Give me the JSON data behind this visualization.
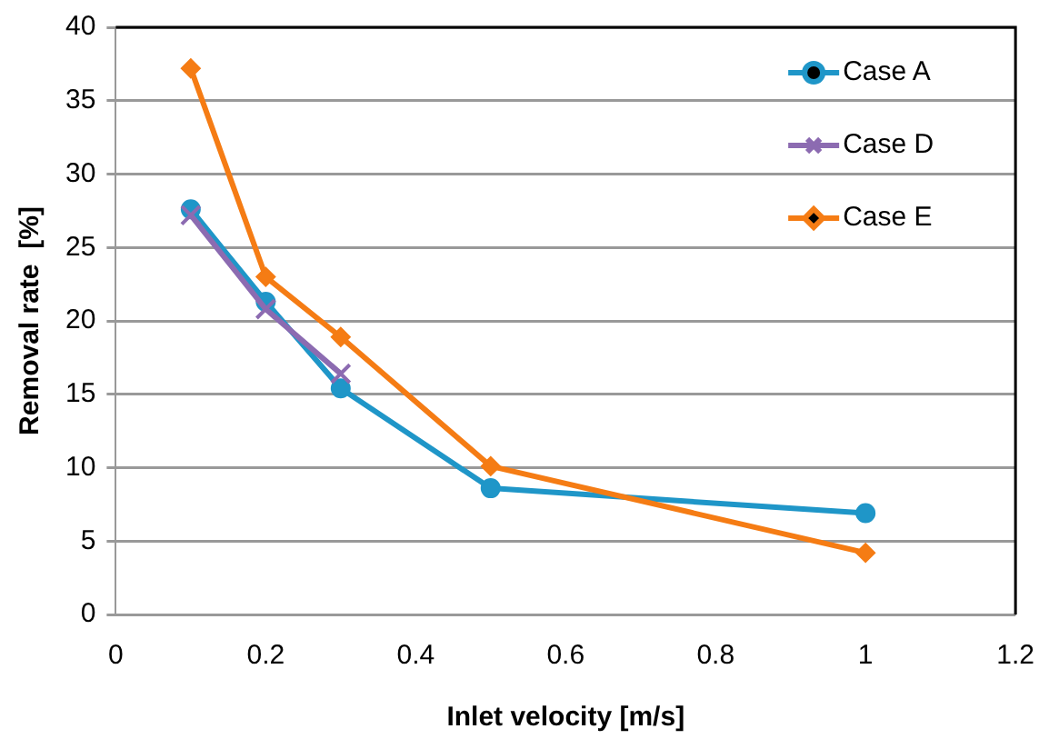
{
  "chart_data": {
    "type": "line",
    "xlabel": "Inlet velocity [m/s]",
    "ylabel": "Removal rate  [%]",
    "xlim": [
      0,
      1.2
    ],
    "xticks": [
      0,
      {
        "value": 0.2,
        "label": "0.2"
      },
      {
        "value": 0.4,
        "label": "0.4"
      },
      {
        "value": 0.6,
        "label": "0.6"
      },
      {
        "value": 0.8,
        "label": "0.8"
      },
      1,
      {
        "value": 1.2,
        "label": "1.2"
      }
    ],
    "ylim": [
      0,
      40
    ],
    "yticks": [
      0,
      5,
      10,
      15,
      20,
      25,
      30,
      35,
      40
    ],
    "grid": "y",
    "legend": "top right",
    "series": [
      {
        "name": "Case A",
        "color": "#1f96c8",
        "marker": "circle",
        "x": [
          0.1,
          0.2,
          0.3,
          0.5,
          1
        ],
        "values": [
          27.6,
          21.3,
          15.4,
          8.6,
          6.9
        ]
      },
      {
        "name": "Case D",
        "color": "#8c6bb1",
        "marker": "cross",
        "x": [
          0.1,
          0.2,
          0.3
        ],
        "values": [
          27.2,
          20.8,
          16.4
        ]
      },
      {
        "name": "Case E",
        "color": "#f57c14",
        "marker": "diamond",
        "x": [
          0.1,
          0.2,
          0.3,
          0.5,
          1
        ],
        "values": [
          37.2,
          23.0,
          18.9,
          10.1,
          4.2
        ]
      }
    ]
  }
}
